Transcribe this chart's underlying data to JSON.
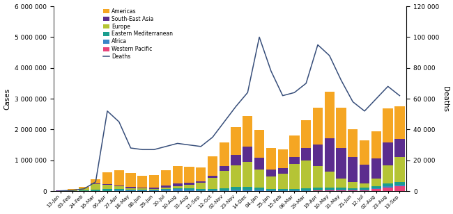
{
  "x_labels": [
    "13-Jan",
    "03-Feb",
    "24-Feb",
    "16-Mar",
    "06-Apr",
    "27-Apr",
    "18-May",
    "08-Jun",
    "29-Jun",
    "20-Jul",
    "10-Aug",
    "31-Aug",
    "21-Sep",
    "12-Oct",
    "02-Nov",
    "23-Nov",
    "14-Dec",
    "04-Jan",
    "25-Jan",
    "15-Feb",
    "08-Mar",
    "29-Mar",
    "19-Apr",
    "10-May",
    "31-May",
    "21-Jun",
    "12-Jul",
    "02-Aug",
    "23-Aug",
    "13-Sep"
  ],
  "americas": [
    20000,
    30000,
    50000,
    130000,
    380000,
    500000,
    450000,
    380000,
    400000,
    500000,
    580000,
    520000,
    450000,
    620000,
    780000,
    900000,
    1000000,
    900000,
    700000,
    600000,
    700000,
    900000,
    1200000,
    1500000,
    1300000,
    900000,
    800000,
    900000,
    1100000,
    1050000
  ],
  "southeast_asia": [
    2000,
    3000,
    5000,
    8000,
    15000,
    20000,
    25000,
    30000,
    40000,
    55000,
    70000,
    65000,
    50000,
    80000,
    160000,
    350000,
    500000,
    380000,
    220000,
    180000,
    220000,
    400000,
    700000,
    1100000,
    1000000,
    800000,
    600000,
    650000,
    750000,
    600000
  ],
  "europe": [
    5000,
    20000,
    80000,
    200000,
    150000,
    80000,
    50000,
    40000,
    30000,
    50000,
    80000,
    130000,
    200000,
    350000,
    550000,
    700000,
    800000,
    600000,
    400000,
    500000,
    800000,
    900000,
    700000,
    500000,
    300000,
    200000,
    150000,
    250000,
    600000,
    800000
  ],
  "eastern_med": [
    3000,
    5000,
    10000,
    30000,
    50000,
    55000,
    35000,
    25000,
    20000,
    25000,
    30000,
    35000,
    40000,
    50000,
    70000,
    90000,
    100000,
    75000,
    55000,
    45000,
    55000,
    65000,
    75000,
    80000,
    65000,
    55000,
    50000,
    55000,
    75000,
    90000
  ],
  "africa": [
    500,
    1000,
    2000,
    5000,
    10000,
    15000,
    15000,
    18000,
    25000,
    45000,
    55000,
    45000,
    25000,
    18000,
    22000,
    28000,
    32000,
    28000,
    18000,
    14000,
    15000,
    18000,
    22000,
    28000,
    25000,
    20000,
    20000,
    28000,
    45000,
    55000
  ],
  "western_pacific": [
    5000,
    3000,
    2000,
    3000,
    3000,
    3000,
    3000,
    3000,
    3000,
    4000,
    5000,
    5000,
    5000,
    6000,
    7000,
    9000,
    11000,
    9000,
    8000,
    8000,
    9000,
    11000,
    14000,
    18000,
    22000,
    28000,
    35000,
    70000,
    120000,
    160000
  ],
  "deaths": [
    200,
    500,
    1500,
    6000,
    52000,
    45000,
    28000,
    27000,
    27000,
    29000,
    31000,
    30000,
    29000,
    35000,
    45000,
    55000,
    64000,
    100000,
    78000,
    62000,
    64000,
    70000,
    95000,
    88000,
    72000,
    58000,
    52000,
    60000,
    68000,
    62000
  ],
  "colors": {
    "americas": "#F5A623",
    "southeast_asia": "#5B2D8E",
    "europe": "#B5C435",
    "eastern_med": "#1A9E8F",
    "africa": "#3A86C8",
    "western_pacific": "#E8437A"
  },
  "deaths_color": "#374E7A",
  "ylim_left": [
    0,
    6000000
  ],
  "ylim_right": [
    0,
    120000
  ],
  "ylabel_left": "Cases",
  "ylabel_right": "Deaths",
  "figsize": [
    6.5,
    3.08
  ],
  "dpi": 100
}
